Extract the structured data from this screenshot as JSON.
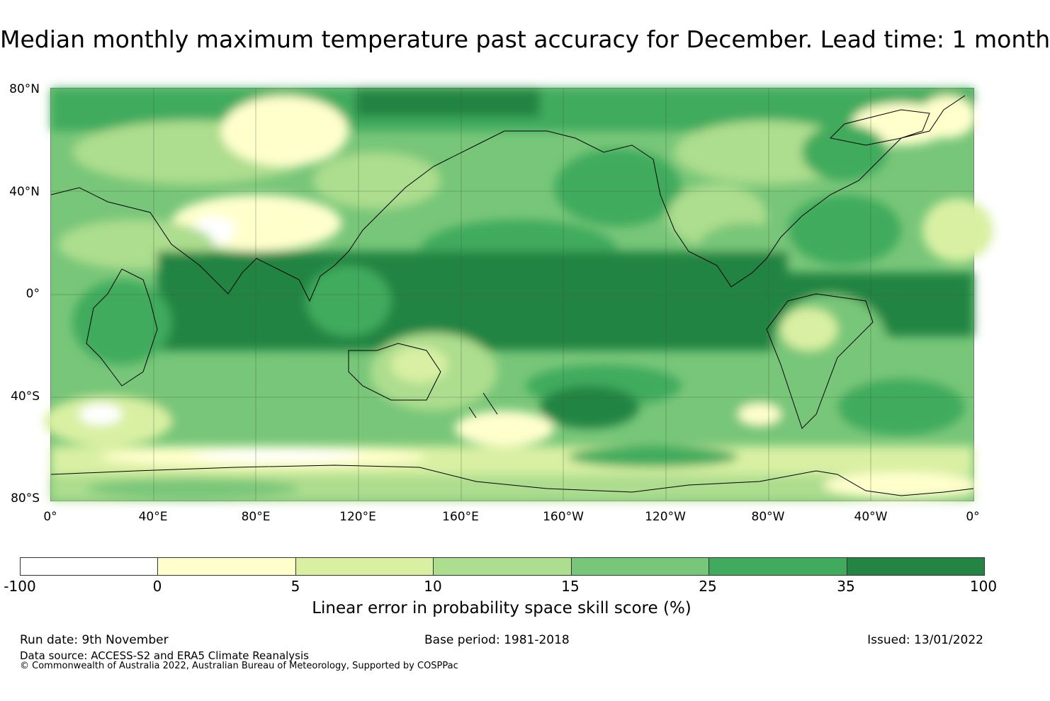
{
  "title": "Median monthly maximum temperature past accuracy for December. Lead time: 1 month",
  "map": {
    "latitude_labels": [
      "80°N",
      "40°N",
      "0°",
      "40°S",
      "80°S"
    ],
    "longitude_labels": [
      "0°",
      "40°E",
      "80°E",
      "120°E",
      "160°E",
      "160°W",
      "120°W",
      "80°W",
      "40°W",
      "0°"
    ]
  },
  "colorbar": {
    "ticks": [
      "-100",
      "0",
      "5",
      "10",
      "15",
      "25",
      "35",
      "100"
    ],
    "colors": [
      "#ffffff",
      "#ffffcc",
      "#d9f0a3",
      "#addd8e",
      "#78c679",
      "#41ab5d",
      "#238443"
    ],
    "label": "Linear error in probability space skill score (%)"
  },
  "footer": {
    "run_date": "Run date: 9th November",
    "base_period": "Base period: 1981-2018",
    "issued": "Issued: 13/01/2022",
    "data_source": "Data source: ACCESS-S2 and ERA5 Climate Reanalysis",
    "copyright": "© Commonwealth of Australia 2022, Australian Bureau of Meteorology, Supported by COSPPac"
  }
}
